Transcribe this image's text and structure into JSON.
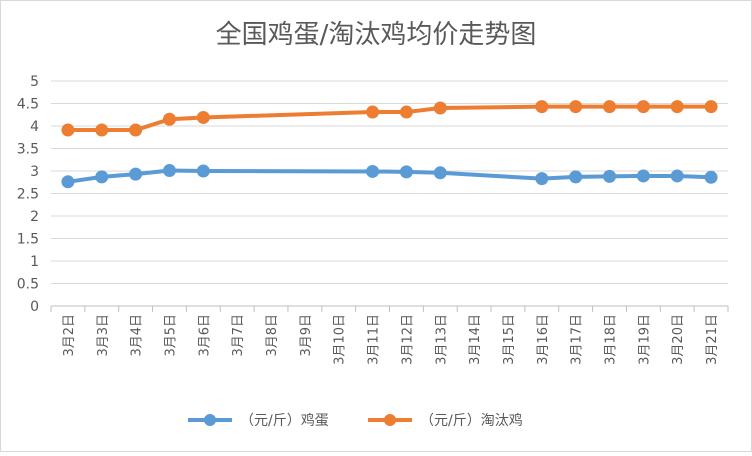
{
  "chart_data": {
    "type": "line",
    "title": "全国鸡蛋/淘汰鸡均价走势图",
    "xlabel": "",
    "ylabel": "",
    "ylim": [
      0,
      5
    ],
    "yticks": [
      "0",
      "0.5",
      "1",
      "1.5",
      "2",
      "2.5",
      "3",
      "3.5",
      "4",
      "4.5",
      "5"
    ],
    "categories": [
      "3月2日",
      "3月3日",
      "3月4日",
      "3月5日",
      "3月6日",
      "3月7日",
      "3月8日",
      "3月9日",
      "3月10日",
      "3月11日",
      "3月12日",
      "3月13日",
      "3月14日",
      "3月15日",
      "3月16日",
      "3月17日",
      "3月18日",
      "3月19日",
      "3月20日",
      "3月21日"
    ],
    "grid": true,
    "legend_position": "bottom",
    "series": [
      {
        "name": "（元/斤）鸡蛋",
        "color": "#5B9BD5",
        "values": [
          2.76,
          2.87,
          2.93,
          3.01,
          3.0,
          null,
          null,
          null,
          null,
          2.99,
          2.98,
          2.96,
          null,
          null,
          2.83,
          2.87,
          2.88,
          2.89,
          2.89,
          2.86
        ]
      },
      {
        "name": "（元/斤）淘汰鸡",
        "color": "#ED7D31",
        "values": [
          3.91,
          3.91,
          3.91,
          4.15,
          4.19,
          null,
          null,
          null,
          null,
          4.31,
          4.31,
          4.4,
          null,
          null,
          4.43,
          4.43,
          4.43,
          4.43,
          4.43,
          4.43
        ]
      }
    ]
  }
}
